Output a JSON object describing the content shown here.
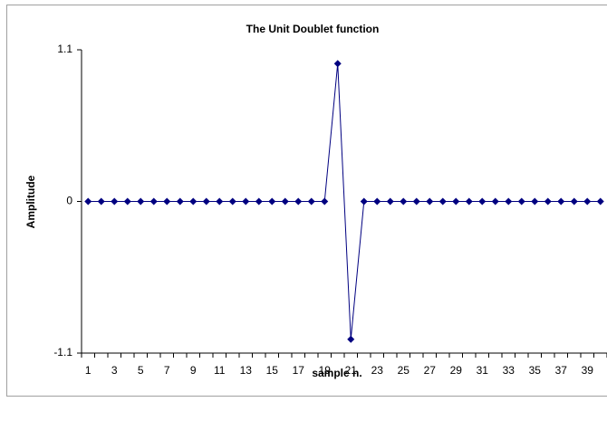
{
  "chart_data": {
    "type": "line",
    "title": "The Unit Doublet function",
    "x_label": "sample n.",
    "y_label": "Amplitude",
    "categories": [
      1,
      null,
      3,
      null,
      5,
      null,
      7,
      null,
      9,
      null,
      11,
      null,
      13,
      null,
      15,
      null,
      17,
      null,
      19,
      null,
      21,
      null,
      23,
      null,
      25,
      null,
      27,
      null,
      29,
      null,
      31,
      null,
      33,
      null,
      35,
      null,
      37,
      null,
      39,
      null
    ],
    "series": [
      {
        "color": "#000080",
        "values": [
          0,
          0,
          0,
          0,
          0,
          0,
          0,
          0,
          0,
          0,
          0,
          0,
          0,
          0,
          0,
          0,
          0,
          0,
          0,
          1,
          -1,
          0,
          0,
          0,
          0,
          0,
          0,
          0,
          0,
          0,
          0,
          0,
          0,
          0,
          0,
          0,
          0,
          0,
          0,
          0
        ]
      }
    ],
    "ylim": [
      -1.1,
      1.1
    ],
    "yticks": [
      -1.1,
      0,
      1.1
    ],
    "grid": false
  }
}
